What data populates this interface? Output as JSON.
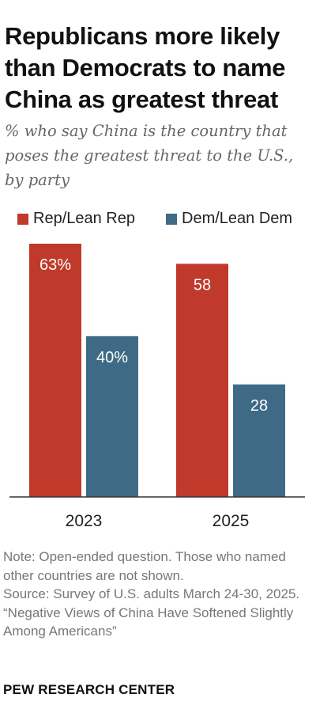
{
  "title": "Republicans more likely than Democrats to name China as greatest threat",
  "subtitle": "% who say China is the country that poses the greatest threat to the U.S., by party",
  "notes": {
    "note": "Note: Open-ended question. Those who named other countries are not shown.",
    "source": "Source: Survey of U.S. adults March 24-30, 2025.",
    "report": "“Negative Views of China Have Softened Slightly Among Americans”"
  },
  "footer": "PEW RESEARCH CENTER",
  "colors": {
    "rep": "#c0392b",
    "dem": "#3f6a86",
    "label": "#ffffff",
    "axis": "#333333"
  },
  "chart_data": {
    "type": "bar",
    "categories": [
      "2023",
      "2025"
    ],
    "series": [
      {
        "name": "Rep/Lean Rep",
        "values": [
          63,
          58
        ],
        "labels": [
          "63%",
          "58"
        ]
      },
      {
        "name": "Dem/Lean Dem",
        "values": [
          40,
          28
        ],
        "labels": [
          "40%",
          "28"
        ]
      }
    ],
    "ylim": [
      0,
      63
    ],
    "legend_position": "top-left",
    "grid": false
  }
}
